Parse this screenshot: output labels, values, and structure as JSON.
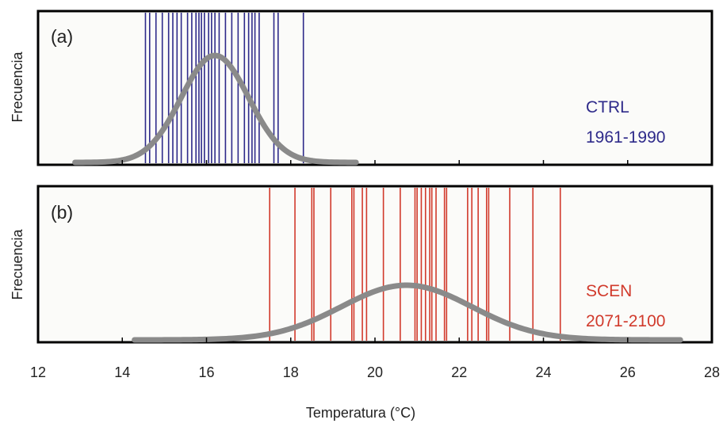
{
  "chart_data": {
    "type": "line",
    "xlabel": "Temperatura (°C)",
    "xlim": [
      12,
      28
    ],
    "x_ticks": [
      12,
      14,
      16,
      18,
      20,
      22,
      24,
      26,
      28
    ],
    "panels": [
      {
        "tag": "(a)",
        "ylabel": "Frecuencia",
        "label_line1": "CTRL",
        "label_line2": "1961-1990",
        "color": "#2e2a8a",
        "curve_color": "#8a8a8a",
        "distribution": {
          "type": "normal",
          "mean": 16.2,
          "sd": 0.8
        },
        "yearly_values": [
          14.55,
          14.65,
          14.8,
          14.95,
          15.1,
          15.2,
          15.3,
          15.4,
          15.55,
          15.65,
          15.75,
          15.82,
          15.88,
          15.95,
          16.05,
          16.12,
          16.2,
          16.3,
          16.45,
          16.6,
          16.75,
          16.9,
          17.0,
          17.08,
          17.15,
          17.25,
          17.6,
          17.7,
          18.3
        ]
      },
      {
        "tag": "(b)",
        "ylabel": "Frecuencia",
        "label_line1": "SCEN",
        "label_line2": "2071-2100",
        "color": "#d13a2c",
        "curve_color": "#8a8a8a",
        "distribution": {
          "type": "normal",
          "mean": 20.75,
          "sd": 1.55
        },
        "yearly_values": [
          17.5,
          18.1,
          18.5,
          18.55,
          18.95,
          19.45,
          19.5,
          19.7,
          19.8,
          20.2,
          20.6,
          20.95,
          21.0,
          21.1,
          21.2,
          21.3,
          21.35,
          21.45,
          21.65,
          21.7,
          22.2,
          22.3,
          22.45,
          22.65,
          22.7,
          23.2,
          23.75,
          24.4
        ]
      }
    ]
  }
}
